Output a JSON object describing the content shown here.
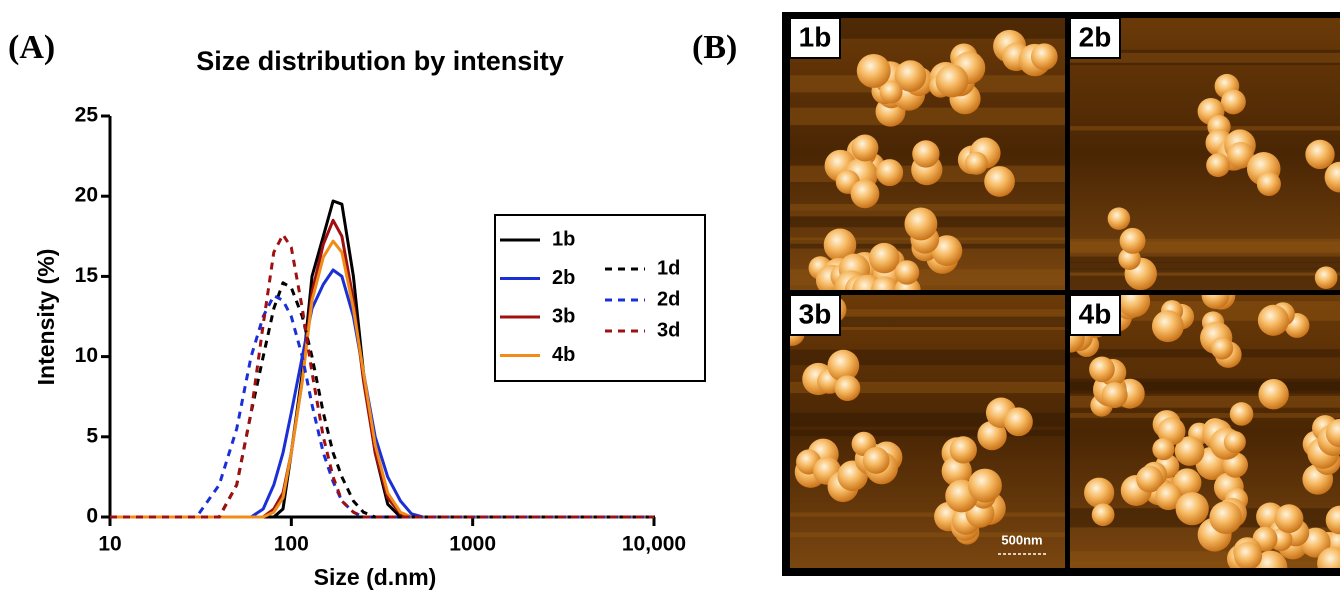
{
  "panel_labels": [
    "(A)",
    "(B)"
  ],
  "chart_data": {
    "type": "line",
    "title": "Size distribution by intensity",
    "x_label": "Size (d.nm)",
    "y_label": "Intensity (%)",
    "x_scale": "log",
    "xlim": [
      10,
      10000
    ],
    "xticks": [
      10,
      100,
      1000,
      {
        "value": 10000,
        "label": "10,000"
      }
    ],
    "ylim": [
      0,
      25
    ],
    "yticks": [
      0,
      5,
      10,
      15,
      20,
      25
    ],
    "grid": false,
    "legend": "right",
    "x": [
      10,
      30,
      40,
      50,
      60,
      70,
      80,
      90,
      100,
      115,
      130,
      150,
      170,
      190,
      220,
      250,
      290,
      340,
      400,
      460,
      530,
      10000
    ],
    "series": [
      {
        "name": "1b",
        "color": "#000000",
        "dashed": false,
        "values": [
          0,
          0,
          0,
          0,
          0,
          0,
          0,
          0.5,
          4,
          9,
          15,
          17.5,
          19.7,
          19.5,
          15,
          9,
          4,
          0.8,
          0,
          0,
          0,
          0
        ]
      },
      {
        "name": "2b",
        "color": "#1a2fd6",
        "dashed": false,
        "values": [
          0,
          0,
          0,
          0,
          0,
          0.5,
          2,
          4,
          6.5,
          10,
          13,
          14.5,
          15.4,
          15,
          12.5,
          9,
          5,
          2.5,
          1,
          0.2,
          0,
          0
        ]
      },
      {
        "name": "3b",
        "color": "#a01010",
        "dashed": false,
        "values": [
          0,
          0,
          0,
          0,
          0,
          0,
          0.5,
          1.5,
          4,
          8.5,
          14,
          17,
          18.5,
          17.5,
          13.5,
          8.5,
          4,
          1.2,
          0.2,
          0,
          0,
          0
        ]
      },
      {
        "name": "4b",
        "color": "#f08c1a",
        "dashed": false,
        "values": [
          0,
          0,
          0,
          0,
          0,
          0,
          0.3,
          1.2,
          4,
          8.5,
          13.5,
          16.2,
          17.2,
          16.5,
          13,
          9,
          4.5,
          1.5,
          0.3,
          0,
          0,
          0
        ]
      },
      {
        "name": "1d",
        "color": "#000000",
        "dashed": true,
        "values": [
          0,
          0,
          0,
          2,
          6.5,
          10,
          13,
          14.6,
          14.3,
          12.5,
          10,
          6.5,
          4,
          2.5,
          1,
          0.3,
          0,
          0,
          0,
          0,
          0,
          0
        ]
      },
      {
        "name": "2d",
        "color": "#1a2fd6",
        "dashed": true,
        "values": [
          0,
          0,
          2,
          5.5,
          10,
          12.5,
          13.8,
          13.5,
          12.5,
          10,
          7,
          4,
          2.2,
          1,
          0.3,
          0,
          0,
          0,
          0,
          0,
          0,
          0
        ]
      },
      {
        "name": "3d",
        "color": "#a01010",
        "dashed": true,
        "values": [
          0,
          0,
          0,
          2,
          6.5,
          12,
          16.5,
          17.6,
          16.8,
          13,
          9,
          5,
          2.5,
          1,
          0.3,
          0,
          0,
          0,
          0,
          0,
          0,
          0
        ]
      }
    ]
  },
  "afm_images": {
    "labels": [
      "1b",
      "2b",
      "3b",
      "4b"
    ],
    "scale_bar": "500nm"
  }
}
